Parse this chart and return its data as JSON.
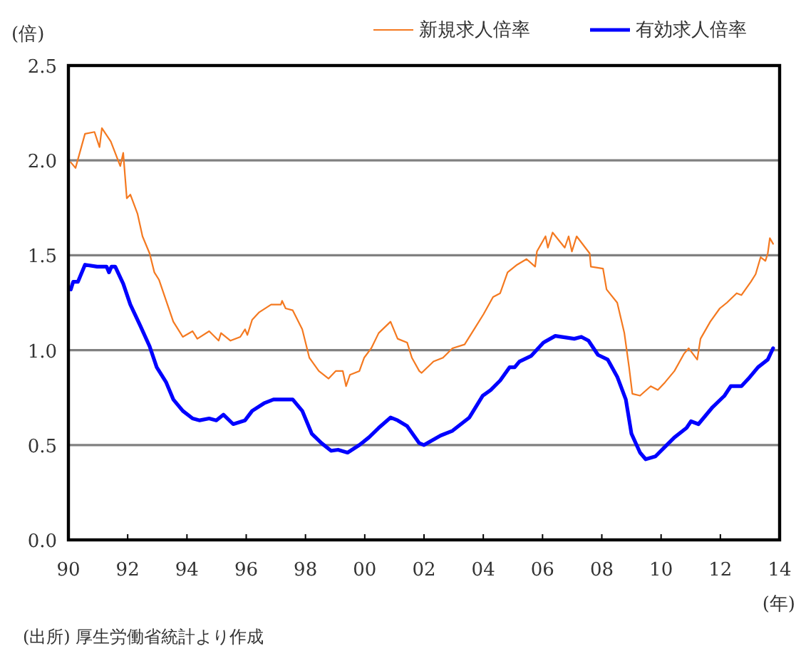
{
  "chart_data": {
    "type": "line",
    "ylabel": "(倍)",
    "xlabel": "(年)",
    "annotations": [
      "(出所) 厚生労働省統計より作成"
    ],
    "xlim": [
      1990,
      2014
    ],
    "xticks": [
      {
        "value": 1990,
        "label": "90"
      },
      {
        "value": 1992,
        "label": "92"
      },
      {
        "value": 1994,
        "label": "94"
      },
      {
        "value": 1996,
        "label": "96"
      },
      {
        "value": 1998,
        "label": "98"
      },
      {
        "value": 2000,
        "label": "00"
      },
      {
        "value": 2002,
        "label": "02"
      },
      {
        "value": 2004,
        "label": "04"
      },
      {
        "value": 2006,
        "label": "06"
      },
      {
        "value": 2008,
        "label": "08"
      },
      {
        "value": 2010,
        "label": "10"
      },
      {
        "value": 2012,
        "label": "12"
      },
      {
        "value": 2014,
        "label": "14"
      }
    ],
    "ylim": [
      0,
      2.5
    ],
    "yticks": [
      {
        "value": 0,
        "label": "0.0"
      },
      {
        "value": 0.5,
        "label": "0.5"
      },
      {
        "value": 1,
        "label": "1.0"
      },
      {
        "value": 1.5,
        "label": "1.5"
      },
      {
        "value": 2,
        "label": "2.0"
      },
      {
        "value": 2.5,
        "label": "2.5"
      }
    ],
    "grid": "y",
    "legend": "top right",
    "marker": "none",
    "line_style": "solid",
    "series": [
      {
        "name": "新規求人倍率",
        "color": "#f47920",
        "x": [
          1990.08,
          1990.24,
          1990.56,
          1990.88,
          1991.05,
          1991.13,
          1991.43,
          1991.75,
          1991.85,
          1991.97,
          1992.09,
          1992.33,
          1992.5,
          1992.74,
          1992.9,
          1993.06,
          1993.3,
          1993.54,
          1993.86,
          1994.19,
          1994.35,
          1994.75,
          1995.07,
          1995.15,
          1995.47,
          1995.8,
          1995.96,
          1996.04,
          1996.2,
          1996.44,
          1996.84,
          1997.17,
          1997.21,
          1997.33,
          1997.57,
          1997.89,
          1998.13,
          1998.45,
          1998.78,
          1999.02,
          1999.26,
          1999.37,
          1999.5,
          1999.82,
          1999.98,
          2000.22,
          2000.47,
          2000.87,
          2001.11,
          2001.43,
          2001.59,
          2001.84,
          2001.92,
          2002.32,
          2002.64,
          2002.96,
          2003.37,
          2003.69,
          2004.01,
          2004.33,
          2004.57,
          2004.82,
          2005.14,
          2005.46,
          2005.75,
          2005.81,
          2006.1,
          2006.18,
          2006.34,
          2006.75,
          2006.88,
          2006.99,
          2007.15,
          2007.59,
          2007.63,
          2008.04,
          2008.16,
          2008.52,
          2008.76,
          2008.92,
          2009.03,
          2009.29,
          2009.65,
          2009.89,
          2010.13,
          2010.45,
          2010.77,
          2010.93,
          2011.22,
          2011.33,
          2011.66,
          2011.98,
          2012.22,
          2012.55,
          2012.71,
          2013.03,
          2013.19,
          2013.36,
          2013.52,
          2013.6,
          2013.67,
          2013.78
        ],
        "values": [
          1.99,
          1.96,
          2.14,
          2.15,
          2.07,
          2.17,
          2.1,
          1.97,
          2.04,
          1.8,
          1.82,
          1.72,
          1.6,
          1.51,
          1.41,
          1.37,
          1.26,
          1.15,
          1.07,
          1.1,
          1.06,
          1.1,
          1.05,
          1.09,
          1.05,
          1.07,
          1.11,
          1.08,
          1.16,
          1.2,
          1.24,
          1.24,
          1.26,
          1.22,
          1.21,
          1.11,
          0.96,
          0.89,
          0.85,
          0.89,
          0.89,
          0.81,
          0.87,
          0.89,
          0.96,
          1.01,
          1.09,
          1.15,
          1.06,
          1.04,
          0.96,
          0.89,
          0.88,
          0.94,
          0.96,
          1.01,
          1.03,
          1.11,
          1.19,
          1.28,
          1.3,
          1.41,
          1.45,
          1.48,
          1.44,
          1.52,
          1.6,
          1.54,
          1.62,
          1.54,
          1.6,
          1.52,
          1.6,
          1.51,
          1.44,
          1.43,
          1.32,
          1.25,
          1.09,
          0.91,
          0.77,
          0.76,
          0.81,
          0.79,
          0.83,
          0.89,
          0.98,
          1.01,
          0.95,
          1.06,
          1.15,
          1.22,
          1.25,
          1.3,
          1.29,
          1.36,
          1.4,
          1.49,
          1.47,
          1.51,
          1.59,
          1.56
        ]
      },
      {
        "name": "有効求人倍率",
        "color": "#0000ff",
        "x": [
          1990.08,
          1990.16,
          1990.32,
          1990.56,
          1990.97,
          1991.29,
          1991.37,
          1991.45,
          1991.58,
          1991.85,
          1992.09,
          1992.42,
          1992.74,
          1992.98,
          1993.3,
          1993.54,
          1993.86,
          1994.19,
          1994.43,
          1994.75,
          1994.99,
          1995.23,
          1995.56,
          1995.96,
          1996.2,
          1996.6,
          1996.92,
          1997.57,
          1997.89,
          1998.21,
          1998.54,
          1998.86,
          1999.1,
          1999.42,
          1999.82,
          2000.14,
          2000.47,
          2000.87,
          2001.11,
          2001.43,
          2001.84,
          2002.0,
          2002.56,
          2002.96,
          2003.53,
          2003.98,
          2004.25,
          2004.57,
          2004.89,
          2005.06,
          2005.22,
          2005.62,
          2006.03,
          2006.43,
          2007.07,
          2007.31,
          2007.55,
          2007.87,
          2008.2,
          2008.52,
          2008.81,
          2009.0,
          2009.29,
          2009.48,
          2009.81,
          2010.13,
          2010.45,
          2010.86,
          2011.01,
          2011.26,
          2011.74,
          2012.14,
          2012.35,
          2012.71,
          2012.95,
          2013.27,
          2013.6,
          2013.78
        ],
        "values": [
          1.32,
          1.36,
          1.36,
          1.45,
          1.44,
          1.44,
          1.41,
          1.44,
          1.44,
          1.35,
          1.24,
          1.13,
          1.02,
          0.91,
          0.83,
          0.74,
          0.68,
          0.64,
          0.63,
          0.64,
          0.63,
          0.66,
          0.61,
          0.63,
          0.68,
          0.72,
          0.74,
          0.74,
          0.68,
          0.56,
          0.51,
          0.47,
          0.475,
          0.46,
          0.5,
          0.54,
          0.59,
          0.645,
          0.63,
          0.6,
          0.51,
          0.5,
          0.55,
          0.575,
          0.645,
          0.76,
          0.79,
          0.84,
          0.91,
          0.91,
          0.94,
          0.97,
          1.04,
          1.075,
          1.06,
          1.07,
          1.05,
          0.975,
          0.95,
          0.86,
          0.74,
          0.56,
          0.46,
          0.425,
          0.44,
          0.49,
          0.54,
          0.59,
          0.625,
          0.61,
          0.7,
          0.76,
          0.81,
          0.81,
          0.85,
          0.91,
          0.95,
          1.01
        ]
      }
    ]
  }
}
